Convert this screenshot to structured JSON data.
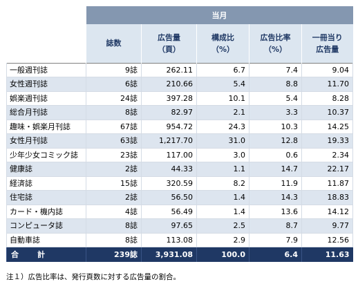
{
  "header": {
    "month": "当月",
    "columns": [
      {
        "line1": "誌数",
        "line2": ""
      },
      {
        "line1": "広告量",
        "line2": "（頁）"
      },
      {
        "line1": "構成比",
        "line2": "（%）"
      },
      {
        "line1": "広告比率",
        "line2": "（%）"
      },
      {
        "line1": "一冊当り",
        "line2": "広告量"
      }
    ]
  },
  "rows": [
    {
      "name": "一般週刊誌",
      "count": "9誌",
      "ad_pages": "262.11",
      "share": "6.7",
      "ratio": "7.4",
      "per_copy": "9.04"
    },
    {
      "name": "女性週刊誌",
      "count": "6誌",
      "ad_pages": "210.66",
      "share": "5.4",
      "ratio": "8.8",
      "per_copy": "11.70"
    },
    {
      "name": "娯楽週刊誌",
      "count": "24誌",
      "ad_pages": "397.28",
      "share": "10.1",
      "ratio": "5.4",
      "per_copy": "8.28"
    },
    {
      "name": "総合月刊誌",
      "count": "8誌",
      "ad_pages": "82.97",
      "share": "2.1",
      "ratio": "3.3",
      "per_copy": "10.37"
    },
    {
      "name": "趣味・娯楽月刊誌",
      "count": "67誌",
      "ad_pages": "954.72",
      "share": "24.3",
      "ratio": "10.3",
      "per_copy": "14.25"
    },
    {
      "name": "女性月刊誌",
      "count": "63誌",
      "ad_pages": "1,217.70",
      "share": "31.0",
      "ratio": "12.8",
      "per_copy": "19.33"
    },
    {
      "name": "少年少女コミック誌",
      "count": "23誌",
      "ad_pages": "117.00",
      "share": "3.0",
      "ratio": "0.6",
      "per_copy": "2.34"
    },
    {
      "name": "健康誌",
      "count": "2誌",
      "ad_pages": "44.33",
      "share": "1.1",
      "ratio": "14.7",
      "per_copy": "22.17"
    },
    {
      "name": "経済誌",
      "count": "15誌",
      "ad_pages": "320.59",
      "share": "8.2",
      "ratio": "11.9",
      "per_copy": "11.87"
    },
    {
      "name": "住宅誌",
      "count": "2誌",
      "ad_pages": "56.50",
      "share": "1.4",
      "ratio": "14.3",
      "per_copy": "18.83"
    },
    {
      "name": "カード・機内誌",
      "count": "4誌",
      "ad_pages": "56.49",
      "share": "1.4",
      "ratio": "13.6",
      "per_copy": "14.12"
    },
    {
      "name": "コンピュータ誌",
      "count": "8誌",
      "ad_pages": "97.65",
      "share": "2.5",
      "ratio": "8.7",
      "per_copy": "9.77"
    },
    {
      "name": "自動車誌",
      "count": "8誌",
      "ad_pages": "113.08",
      "share": "2.9",
      "ratio": "7.9",
      "per_copy": "12.56"
    }
  ],
  "total": {
    "name": "合　計",
    "count": "239誌",
    "ad_pages": "3,931.08",
    "share": "100.0",
    "ratio": "6.4",
    "per_copy": "11.63"
  },
  "note": "注１）広告比率は、発行頁数に対する広告量の割合。"
}
